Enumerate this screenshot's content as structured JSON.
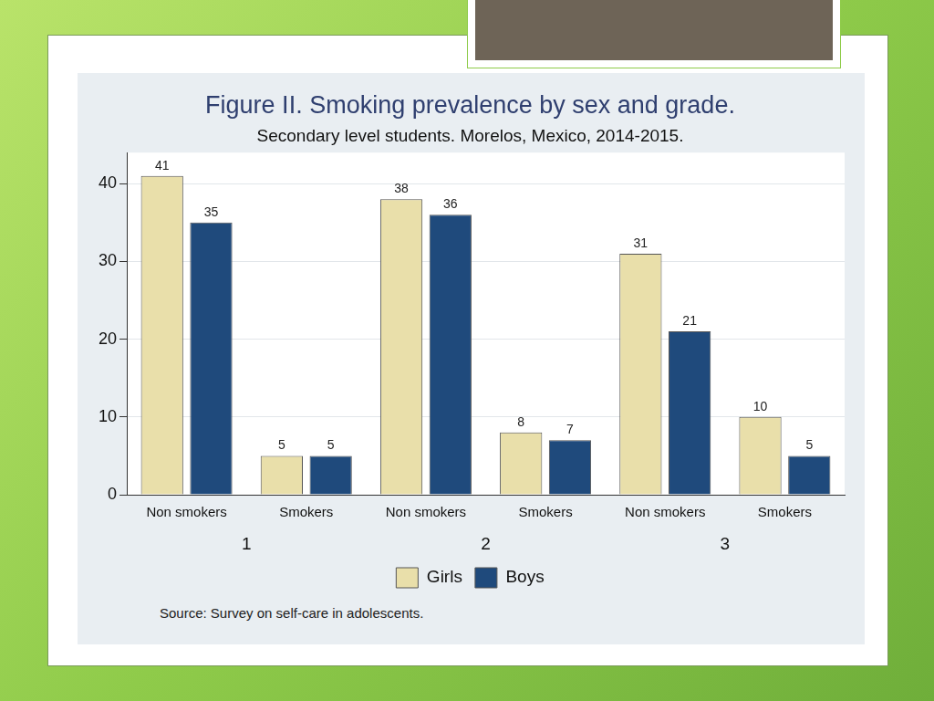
{
  "chart_data": {
    "type": "bar",
    "title": "Figure II. Smoking prevalence by sex and grade.",
    "subtitle": "Secondary level students. Morelos, Mexico, 2014-2015.",
    "source": "Source: Survey on self-care in adolescents.",
    "categories": [
      "Non smokers",
      "Smokers",
      "Non smokers",
      "Smokers",
      "Non smokers",
      "Smokers"
    ],
    "groups": [
      "1",
      "2",
      "3"
    ],
    "series": [
      {
        "name": "Girls",
        "color": "#e9dfaa",
        "values": [
          41,
          5,
          38,
          8,
          31,
          10
        ]
      },
      {
        "name": "Boys",
        "color": "#1f4a7c",
        "values": [
          35,
          5,
          36,
          7,
          21,
          5
        ]
      }
    ],
    "ylim": [
      0,
      44
    ],
    "yticks": [
      0,
      10,
      20,
      30,
      40
    ],
    "grid": true,
    "legend": "bottom",
    "data_labels": true
  }
}
